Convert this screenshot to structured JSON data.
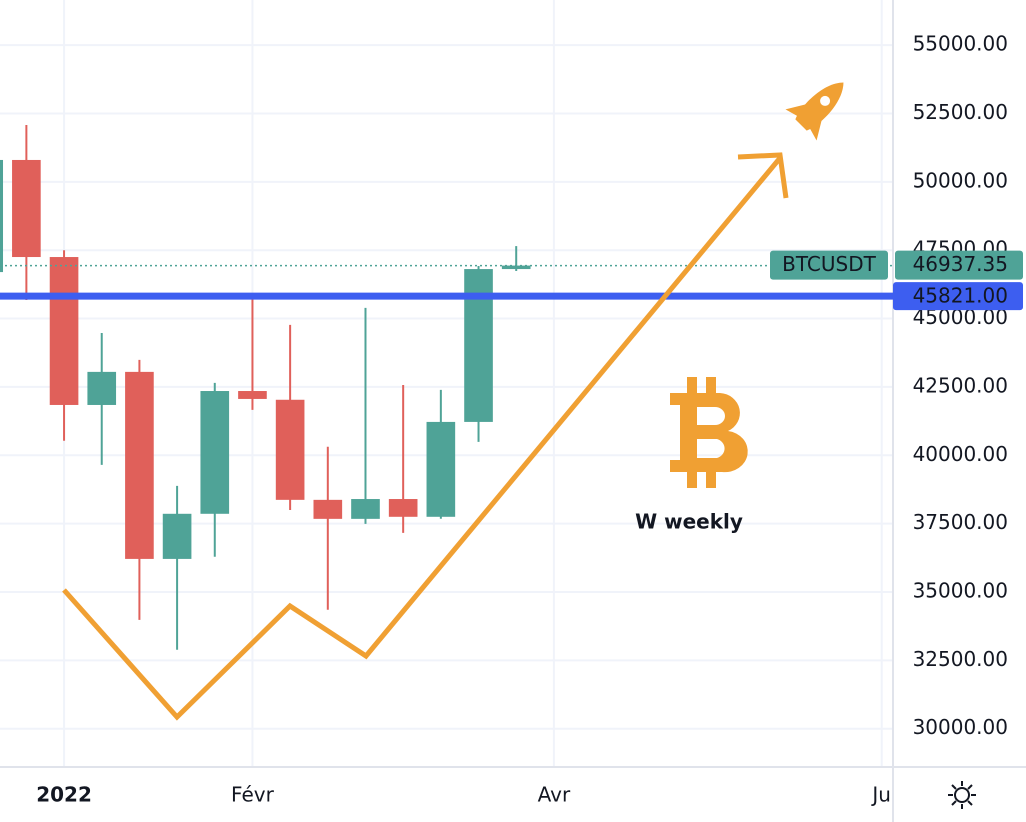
{
  "chart_data": {
    "type": "candlestick",
    "symbol": "BTCUSDT",
    "annotation": "W weekly",
    "x": [
      0,
      1,
      2,
      3,
      4,
      5,
      6,
      7,
      8,
      9,
      10,
      11,
      12,
      13,
      14
    ],
    "open": [
      46700,
      50800,
      47250,
      41840,
      43050,
      36210,
      37860,
      42350,
      42030,
      38370,
      37675,
      38400,
      37750,
      41220,
      46810
    ],
    "high": [
      51000,
      52080,
      47500,
      44470,
      43490,
      38880,
      42650,
      45790,
      44770,
      40310,
      45390,
      42570,
      42390,
      46920,
      47650
    ],
    "low": [
      46200,
      45680,
      40530,
      39650,
      33980,
      32890,
      36290,
      41660,
      38000,
      34350,
      37490,
      37160,
      37680,
      40490,
      46740
    ],
    "close": [
      50800,
      47250,
      41840,
      43050,
      36210,
      37860,
      42350,
      42060,
      38370,
      37675,
      38400,
      37750,
      41220,
      46810,
      46937.35
    ],
    "up_color": "#4fa397",
    "down_color": "#e0605a",
    "xlim": [
      0.3,
      24
    ],
    "ylim": [
      28600,
      56650
    ],
    "xticks": [
      {
        "value": 2,
        "label": "2022"
      },
      {
        "value": 7,
        "label": "Févr"
      },
      {
        "value": 15,
        "label": "Avr"
      },
      {
        "value": 23.7,
        "label": "Ju"
      }
    ],
    "yticks": [
      {
        "value": 30000,
        "label": "30000.00"
      },
      {
        "value": 32500,
        "label": "32500.00"
      },
      {
        "value": 35000,
        "label": "35000.00"
      },
      {
        "value": 37500,
        "label": "37500.00"
      },
      {
        "value": 40000,
        "label": "40000.00"
      },
      {
        "value": 42500,
        "label": "42500.00"
      },
      {
        "value": 45000,
        "label": "45000.00"
      },
      {
        "value": 47500,
        "label": "47500.00"
      },
      {
        "value": 50000,
        "label": "50000.00"
      },
      {
        "value": 52500,
        "label": "52500.00"
      },
      {
        "value": 55000,
        "label": "55000.00"
      }
    ],
    "last_price": {
      "value": 46937.35,
      "label": "46937.35"
    },
    "horizontal_line": {
      "value": 45821,
      "label": "45821.00",
      "color": "#3d5ef0"
    },
    "grid": true
  }
}
